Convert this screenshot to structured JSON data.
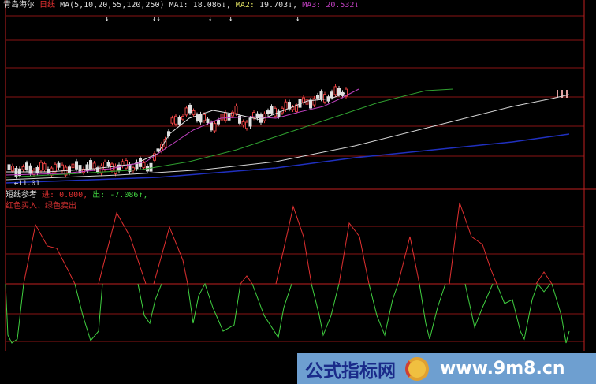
{
  "header": {
    "stock_name": "青岛海尔",
    "period": "日线",
    "ma_params": "MA(5,10,20,55,120,250)",
    "ma1_label": "MA1:",
    "ma1_value": "18.086↓,",
    "ma2_label": "MA2:",
    "ma2_value": "19.703↓,",
    "ma3_label": "MA3:",
    "ma3_value": "20.532↓"
  },
  "date_marker": "11.01",
  "indicator": {
    "name": "短线参考",
    "in_label": "进:",
    "in_value": "0.000,",
    "out_label": "出:",
    "out_value": "-7.086↑,",
    "legend": "红色买入、绿色卖出"
  },
  "watermark": {
    "text": "公式指标网",
    "url": "www.9m8.cn"
  },
  "colors": {
    "buy": "#e03030",
    "sell": "#40d040",
    "grid": "#a01818",
    "ma_white": "#e0e0e0",
    "ma_magenta": "#c040c0",
    "ma_green": "#30a030",
    "ma_blue": "#2030c0"
  }
}
